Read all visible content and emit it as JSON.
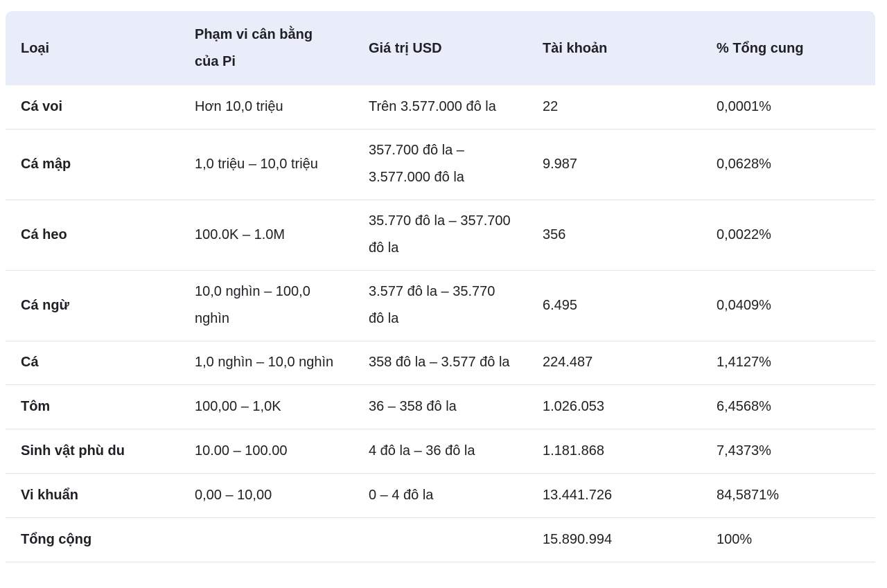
{
  "table": {
    "headers": [
      "Loại",
      "Phạm vi cân bằng của Pi",
      "Giá trị USD",
      "Tài khoản",
      "% Tổng cung"
    ],
    "rows": [
      [
        "Cá voi",
        "Hơn 10,0 triệu",
        "Trên 3.577.000 đô la",
        "22",
        "0,0001%"
      ],
      [
        "Cá mập",
        "1,0 triệu – 10,0 triệu",
        "357.700 đô la – 3.577.000 đô la",
        "9.987",
        "0,0628%"
      ],
      [
        "Cá heo",
        "100.0K – 1.0M",
        "35.770 đô la – 357.700 đô la",
        "356",
        "0,0022%"
      ],
      [
        "Cá ngừ",
        "10,0 nghìn – 100,0 nghìn",
        "3.577 đô la – 35.770 đô la",
        "6.495",
        "0,0409%"
      ],
      [
        "Cá",
        "1,0 nghìn – 10,0 nghìn",
        "358 đô la – 3.577 đô la",
        "224.487",
        "1,4127%"
      ],
      [
        "Tôm",
        "100,00 – 1,0K",
        "36 – 358 đô la",
        "1.026.053",
        "6,4568%"
      ],
      [
        "Sinh vật phù du",
        "10.00 – 100.00",
        "4 đô la – 36 đô la",
        "1.181.868",
        "7,4373%"
      ],
      [
        "Vi khuẩn",
        "0,00 – 10,00",
        "0 – 4 đô la",
        "13.441.726",
        "84,5871%"
      ],
      [
        "Tổng cộng",
        "",
        "",
        "15.890.994",
        "100%"
      ]
    ]
  },
  "colors": {
    "header_bg": "#e9edf9",
    "row_border": "#e3e3e8",
    "text": "#1f1f24"
  }
}
